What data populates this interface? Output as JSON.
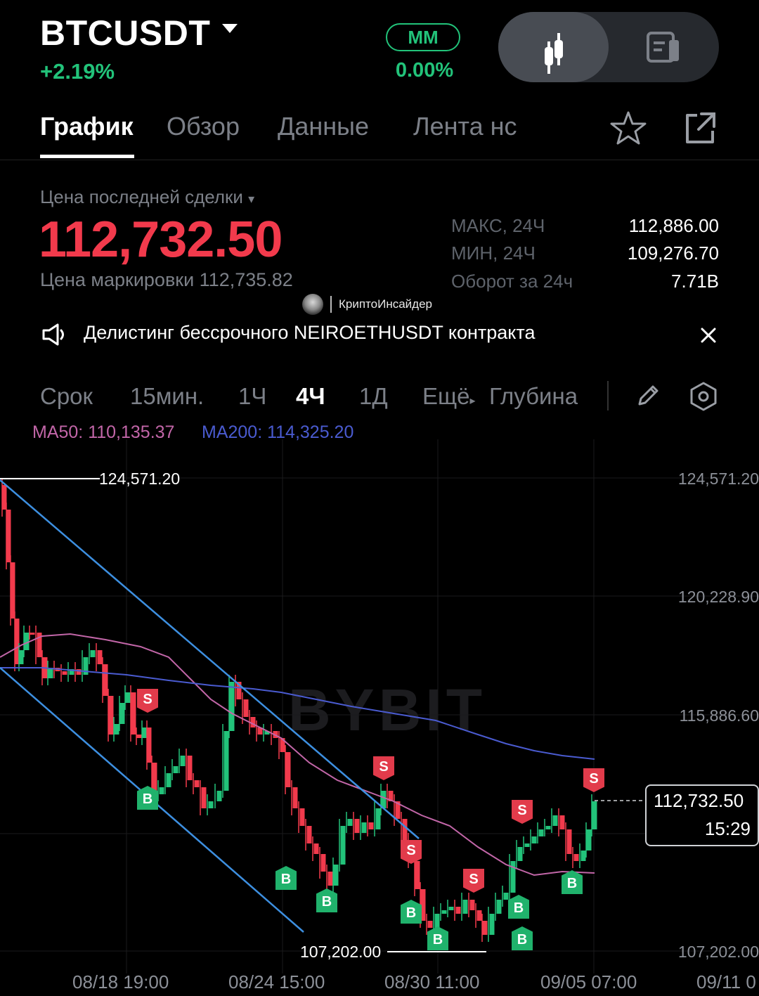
{
  "header": {
    "symbol": "BTCUSDT",
    "change": "+2.19%",
    "mm_label": "MM",
    "mm_value": "0.00%"
  },
  "tabs": [
    {
      "label": "График",
      "active": true
    },
    {
      "label": "Обзор"
    },
    {
      "label": "Данные"
    },
    {
      "label": "Лента нс"
    }
  ],
  "price": {
    "label": "Цена последней сделки",
    "last": "112,732.50",
    "mark": "Цена маркировки 112,735.82",
    "stats": [
      {
        "label": "МАКС, 24Ч",
        "value": "112,886.00"
      },
      {
        "label": "МИН, 24Ч",
        "value": "109,276.70"
      },
      {
        "label": "Оборот за 24ч",
        "value": "7.71B"
      }
    ]
  },
  "watermark": "КриптоИнсайдер",
  "notice": "Делистинг бессрочного NEIROETHUSDT контракта",
  "timeframes": {
    "items": [
      "Срок",
      "15мин.",
      "1Ч",
      "4Ч",
      "1Д",
      "Ещё",
      "Глубина"
    ],
    "active": "4Ч"
  },
  "indicators": {
    "ma50": "MA50: 110,135.37",
    "ma200": "MA200: 114,325.20"
  },
  "colors": {
    "up": "#22c37a",
    "down": "#f23a4c",
    "ma50": "#c266a8",
    "ma200": "#4a5bd0",
    "trend": "#3d8fe0"
  },
  "chart_data": {
    "type": "candlestick",
    "price_axis": [
      "124,571.20",
      "120,228.90",
      "115,886.60",
      "107,202.00"
    ],
    "date_axis": [
      "08/18 19:00",
      "08/24 15:00",
      "08/30 11:00",
      "09/05 07:00",
      "09/11 0"
    ],
    "high_label": "124,571.20",
    "low_label": "107,202.00",
    "current_price": "112,732.50",
    "current_time": "15:29",
    "signal_sell": "S",
    "signal_buy": "B",
    "brand": "BYBIT"
  }
}
